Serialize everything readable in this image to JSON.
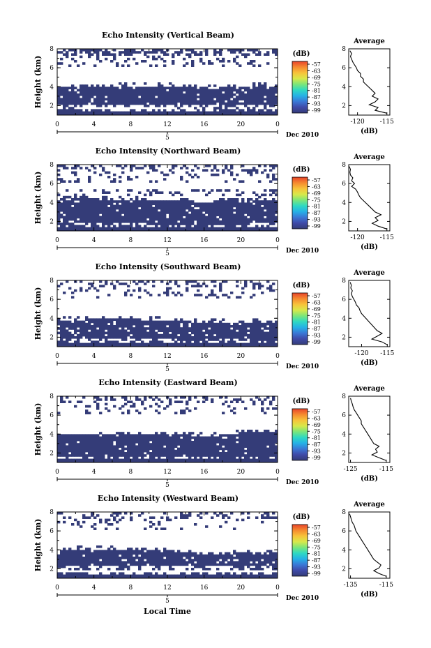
{
  "figure": {
    "date_label": "Dec 2010",
    "bottom_xlabel": "Local Time",
    "ylabel": "Height (km)",
    "colorbar_unit": "(dB)",
    "avg_title": "Average",
    "avg_xlabel": "(dB)"
  },
  "colors": {
    "fill": "#343c78",
    "colorbar_stops": [
      "#343c78",
      "#3f4aa8",
      "#3a78d6",
      "#25b1e6",
      "#2fd9c2",
      "#7be67a",
      "#d8e84a",
      "#f7c33a",
      "#f58a2f",
      "#e8442a"
    ]
  },
  "chart_data": [
    {
      "type": "heatmap",
      "title": "Echo Intensity (Vertical Beam)",
      "ylabel": "Height (km)",
      "xticks": [
        "0",
        "4",
        "8",
        "12",
        "16",
        "20",
        "0"
      ],
      "xday": "5",
      "yticks": [
        "2",
        "4",
        "6",
        "8"
      ],
      "xlim": [
        0,
        24
      ],
      "ylim": [
        1,
        8
      ],
      "colorbar_ticks": [
        "-57",
        "-63",
        "-69",
        "-75",
        "-81",
        "-87",
        "-93",
        "-99"
      ],
      "lower_layer": {
        "x": [
          0,
          4,
          8,
          12,
          14,
          16,
          18,
          20,
          22,
          24
        ],
        "bottom": [
          2.1,
          2.2,
          2.2,
          2.2,
          2.1,
          2.0,
          2.0,
          2.1,
          2.1,
          2.0
        ],
        "top": [
          4.0,
          4.0,
          4.1,
          4.1,
          4.0,
          3.8,
          3.9,
          4.0,
          4.1,
          4.1
        ]
      },
      "upper_patches": "sparse 6.5-8 km, dense 7.4-8 km",
      "average": {
        "xticks": [
          "-120",
          "-115"
        ],
        "xlim": [
          -121.5,
          -114.5
        ],
        "yticks": [
          "2",
          "4",
          "6",
          "8"
        ],
        "ylim": [
          1,
          8
        ],
        "height": [
          1.2,
          1.5,
          1.8,
          2.1,
          2.4,
          2.7,
          3.0,
          3.3,
          3.6,
          3.9,
          4.2,
          4.5,
          4.8,
          5.1,
          5.4,
          5.7,
          6.0,
          6.3,
          6.6,
          6.9,
          7.2,
          7.5,
          7.8
        ],
        "value": [
          -115,
          -117,
          -116.5,
          -118,
          -117,
          -116.5,
          -117.5,
          -117,
          -117.5,
          -118,
          -118.5,
          -119,
          -119,
          -119.5,
          -119.5,
          -120,
          -120.2,
          -120.5,
          -120.8,
          -121,
          -121.2,
          -121,
          -121.3
        ]
      }
    },
    {
      "type": "heatmap",
      "title": "Echo Intensity (Northward Beam)",
      "ylabel": "Height (km)",
      "xticks": [
        "0",
        "4",
        "8",
        "12",
        "16",
        "20",
        "0"
      ],
      "xday": "5",
      "yticks": [
        "2",
        "4",
        "6",
        "8"
      ],
      "xlim": [
        0,
        24
      ],
      "ylim": [
        1,
        8
      ],
      "colorbar_ticks": [
        "-57",
        "-63",
        "-69",
        "-75",
        "-81",
        "-87",
        "-93",
        "-99"
      ],
      "lower_layer": {
        "x": [
          0,
          4,
          8,
          12,
          14,
          16,
          18,
          20,
          22,
          24
        ],
        "bottom": [
          1.7,
          1.8,
          1.8,
          1.7,
          1.7,
          1.6,
          1.7,
          1.7,
          1.8,
          1.7
        ],
        "top": [
          4.3,
          4.4,
          4.3,
          4.2,
          4.2,
          4.0,
          4.2,
          4.1,
          4.3,
          4.2
        ]
      },
      "upper_patches": "sparse 6.0-8 km",
      "average": {
        "xticks": [
          "-120",
          "-115"
        ],
        "xlim": [
          -121.5,
          -114.5
        ],
        "yticks": [
          "2",
          "4",
          "6",
          "8"
        ],
        "ylim": [
          1,
          8
        ],
        "height": [
          1.2,
          1.5,
          1.8,
          2.1,
          2.4,
          2.7,
          3.0,
          3.3,
          3.6,
          3.9,
          4.2,
          4.5,
          4.8,
          5.1,
          5.4,
          5.7,
          6.0,
          6.3,
          6.6,
          6.9,
          7.2,
          7.5,
          7.8
        ],
        "value": [
          -115,
          -116.5,
          -117.5,
          -116.5,
          -117,
          -116,
          -117,
          -117.5,
          -118,
          -118.5,
          -119,
          -119.5,
          -119.8,
          -120,
          -120.3,
          -121,
          -120.5,
          -121,
          -120.8,
          -121.2,
          -121.3,
          -121.2,
          -121.4
        ]
      }
    },
    {
      "type": "heatmap",
      "title": "Echo Intensity (Southward Beam)",
      "ylabel": "Height (km)",
      "xticks": [
        "0",
        "4",
        "8",
        "12",
        "16",
        "20",
        "0"
      ],
      "xday": "5",
      "yticks": [
        "2",
        "4",
        "6",
        "8"
      ],
      "xlim": [
        0,
        24
      ],
      "ylim": [
        1,
        8
      ],
      "colorbar_ticks": [
        "-57",
        "-63",
        "-69",
        "-75",
        "-81",
        "-87",
        "-93",
        "-99"
      ],
      "lower_layer": {
        "x": [
          0,
          4,
          8,
          12,
          14,
          16,
          18,
          20,
          22,
          24
        ],
        "bottom": [
          1.8,
          1.8,
          1.8,
          1.8,
          1.7,
          1.7,
          1.8,
          1.8,
          1.7,
          1.7
        ],
        "top": [
          3.8,
          3.9,
          3.9,
          3.8,
          3.7,
          3.6,
          3.6,
          3.5,
          3.7,
          3.6
        ]
      },
      "upper_patches": "sparse 6.5-8 km",
      "average": {
        "xticks": [
          "-120",
          "-115"
        ],
        "xlim": [
          -122.5,
          -114.5
        ],
        "yticks": [
          "2",
          "4",
          "6",
          "8"
        ],
        "ylim": [
          1,
          8
        ],
        "height": [
          1.2,
          1.5,
          1.8,
          2.1,
          2.4,
          2.7,
          3.0,
          3.3,
          3.6,
          3.9,
          4.2,
          4.5,
          4.8,
          5.1,
          5.4,
          5.7,
          6.0,
          6.3,
          6.6,
          6.9,
          7.2,
          7.5,
          7.8
        ],
        "value": [
          -115,
          -116,
          -118,
          -117,
          -116,
          -117,
          -117.5,
          -118,
          -118.5,
          -119,
          -119.5,
          -120,
          -120.3,
          -120.5,
          -121,
          -121.2,
          -121.5,
          -121.8,
          -122,
          -121.8,
          -122.1,
          -122,
          -122.2
        ]
      }
    },
    {
      "type": "heatmap",
      "title": "Echo Intensity (Eastward Beam)",
      "ylabel": "Height (km)",
      "xticks": [
        "0",
        "4",
        "8",
        "12",
        "16",
        "20",
        "0"
      ],
      "xday": "5",
      "yticks": [
        "2",
        "4",
        "6",
        "8"
      ],
      "xlim": [
        0,
        24
      ],
      "ylim": [
        1,
        8
      ],
      "colorbar_ticks": [
        "-57",
        "-63",
        "-69",
        "-75",
        "-81",
        "-87",
        "-93",
        "-99"
      ],
      "lower_layer": {
        "x": [
          0,
          4,
          8,
          12,
          14,
          16,
          18,
          20,
          22,
          24
        ],
        "bottom": [
          1.5,
          1.6,
          1.6,
          1.6,
          1.5,
          1.5,
          1.6,
          1.6,
          1.5,
          1.5
        ],
        "top": [
          3.9,
          4.0,
          4.0,
          4.1,
          3.9,
          3.8,
          4.0,
          4.1,
          4.2,
          4.3
        ]
      },
      "upper_patches": "sparse 5.8-8 km",
      "average": {
        "xticks": [
          "-125",
          "-115"
        ],
        "xlim": [
          -125.5,
          -114
        ],
        "yticks": [
          "2",
          "4",
          "6",
          "8"
        ],
        "ylim": [
          1,
          8
        ],
        "height": [
          1.2,
          1.5,
          1.8,
          2.1,
          2.4,
          2.7,
          3.0,
          3.3,
          3.6,
          3.9,
          4.2,
          4.5,
          4.8,
          5.1,
          5.4,
          5.7,
          6.0,
          6.3,
          6.6,
          6.9,
          7.2,
          7.5,
          7.8
        ],
        "value": [
          -115,
          -117,
          -119,
          -117.5,
          -118,
          -117,
          -118.5,
          -119,
          -119.5,
          -120,
          -120.5,
          -121,
          -121.5,
          -122,
          -122,
          -122.5,
          -123,
          -123.5,
          -124,
          -124.3,
          -124.5,
          -124.8,
          -125
        ]
      }
    },
    {
      "type": "heatmap",
      "title": "Echo Intensity (Westward Beam)",
      "ylabel": "Height (km)",
      "xticks": [
        "0",
        "4",
        "8",
        "12",
        "16",
        "20",
        "0"
      ],
      "xday": "5",
      "yticks": [
        "2",
        "4",
        "6",
        "8"
      ],
      "xlim": [
        0,
        24
      ],
      "ylim": [
        1,
        8
      ],
      "colorbar_ticks": [
        "-57",
        "-63",
        "-69",
        "-75",
        "-81",
        "-87",
        "-93",
        "-99"
      ],
      "lower_layer": {
        "x": [
          0,
          4,
          8,
          12,
          14,
          16,
          18,
          20,
          22,
          24
        ],
        "bottom": [
          2.2,
          2.3,
          2.3,
          2.4,
          2.3,
          2.2,
          2.3,
          2.2,
          2.3,
          2.2
        ],
        "top": [
          4.0,
          4.1,
          4.0,
          3.9,
          3.8,
          3.5,
          3.4,
          3.7,
          3.6,
          3.6
        ]
      },
      "upper_patches": "sparse 6.0-8 km, left half",
      "average": {
        "xticks": [
          "-135",
          "-115"
        ],
        "xlim": [
          -136,
          -113
        ],
        "yticks": [
          "2",
          "4",
          "6",
          "8"
        ],
        "ylim": [
          1,
          8
        ],
        "height": [
          1.2,
          1.5,
          1.8,
          2.1,
          2.4,
          2.7,
          3.0,
          3.3,
          3.6,
          3.9,
          4.2,
          4.5,
          4.8,
          5.1,
          5.4,
          5.7,
          6.0,
          6.3,
          6.6,
          6.9,
          7.2,
          7.5,
          7.8
        ],
        "value": [
          -115,
          -119,
          -122,
          -119,
          -118,
          -120,
          -122,
          -123,
          -124,
          -125,
          -126,
          -127,
          -128,
          -129,
          -130,
          -131,
          -132,
          -132.5,
          -133,
          -134,
          -134.5,
          -135,
          -135.5
        ]
      }
    }
  ]
}
